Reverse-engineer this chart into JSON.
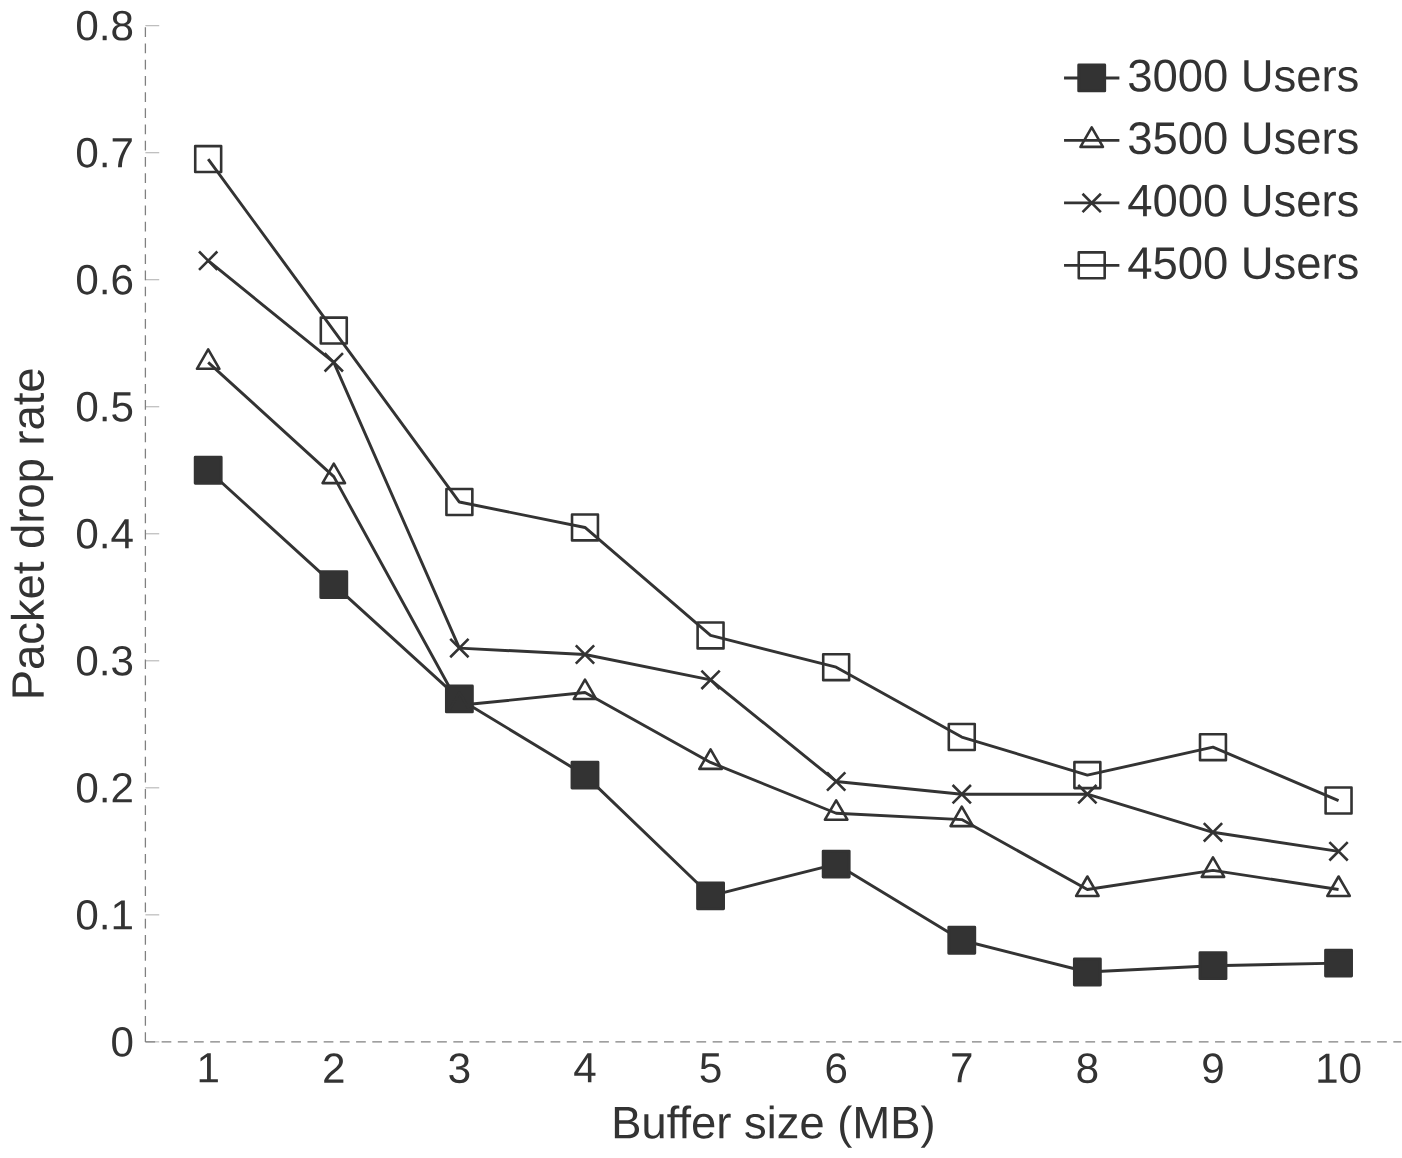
{
  "chart_data": {
    "type": "line",
    "xlabel": "Buffer size (MB)",
    "ylabel": "Packet drop rate",
    "categories": [
      "1",
      "2",
      "3",
      "4",
      "5",
      "6",
      "7",
      "8",
      "9",
      "10"
    ],
    "ylim": [
      0,
      0.8
    ],
    "yticks": [
      0,
      0.1,
      0.2,
      0.3,
      0.4,
      0.5,
      0.6,
      0.7,
      0.8
    ],
    "legend": "top right",
    "grid": false,
    "series": [
      {
        "name": "3000 Users",
        "color": "#333333",
        "marker": "square*",
        "values": [
          0.45,
          0.36,
          0.27,
          0.21,
          0.115,
          0.14,
          0.08,
          0.055,
          0.06,
          0.062
        ]
      },
      {
        "name": "3500 Users",
        "color": "#333333",
        "marker": "triangle",
        "values": [
          0.535,
          0.445,
          0.265,
          0.275,
          0.22,
          0.18,
          0.175,
          0.12,
          0.135,
          0.12
        ]
      },
      {
        "name": "4000 Users",
        "color": "#333333",
        "marker": "cross",
        "values": [
          0.615,
          0.535,
          0.31,
          0.305,
          0.285,
          0.205,
          0.195,
          0.195,
          0.165,
          0.15
        ]
      },
      {
        "name": "4500 Users",
        "color": "#333333",
        "marker": "square",
        "values": [
          0.695,
          0.56,
          0.425,
          0.405,
          0.32,
          0.295,
          0.24,
          0.21,
          0.232,
          0.19
        ]
      }
    ]
  }
}
